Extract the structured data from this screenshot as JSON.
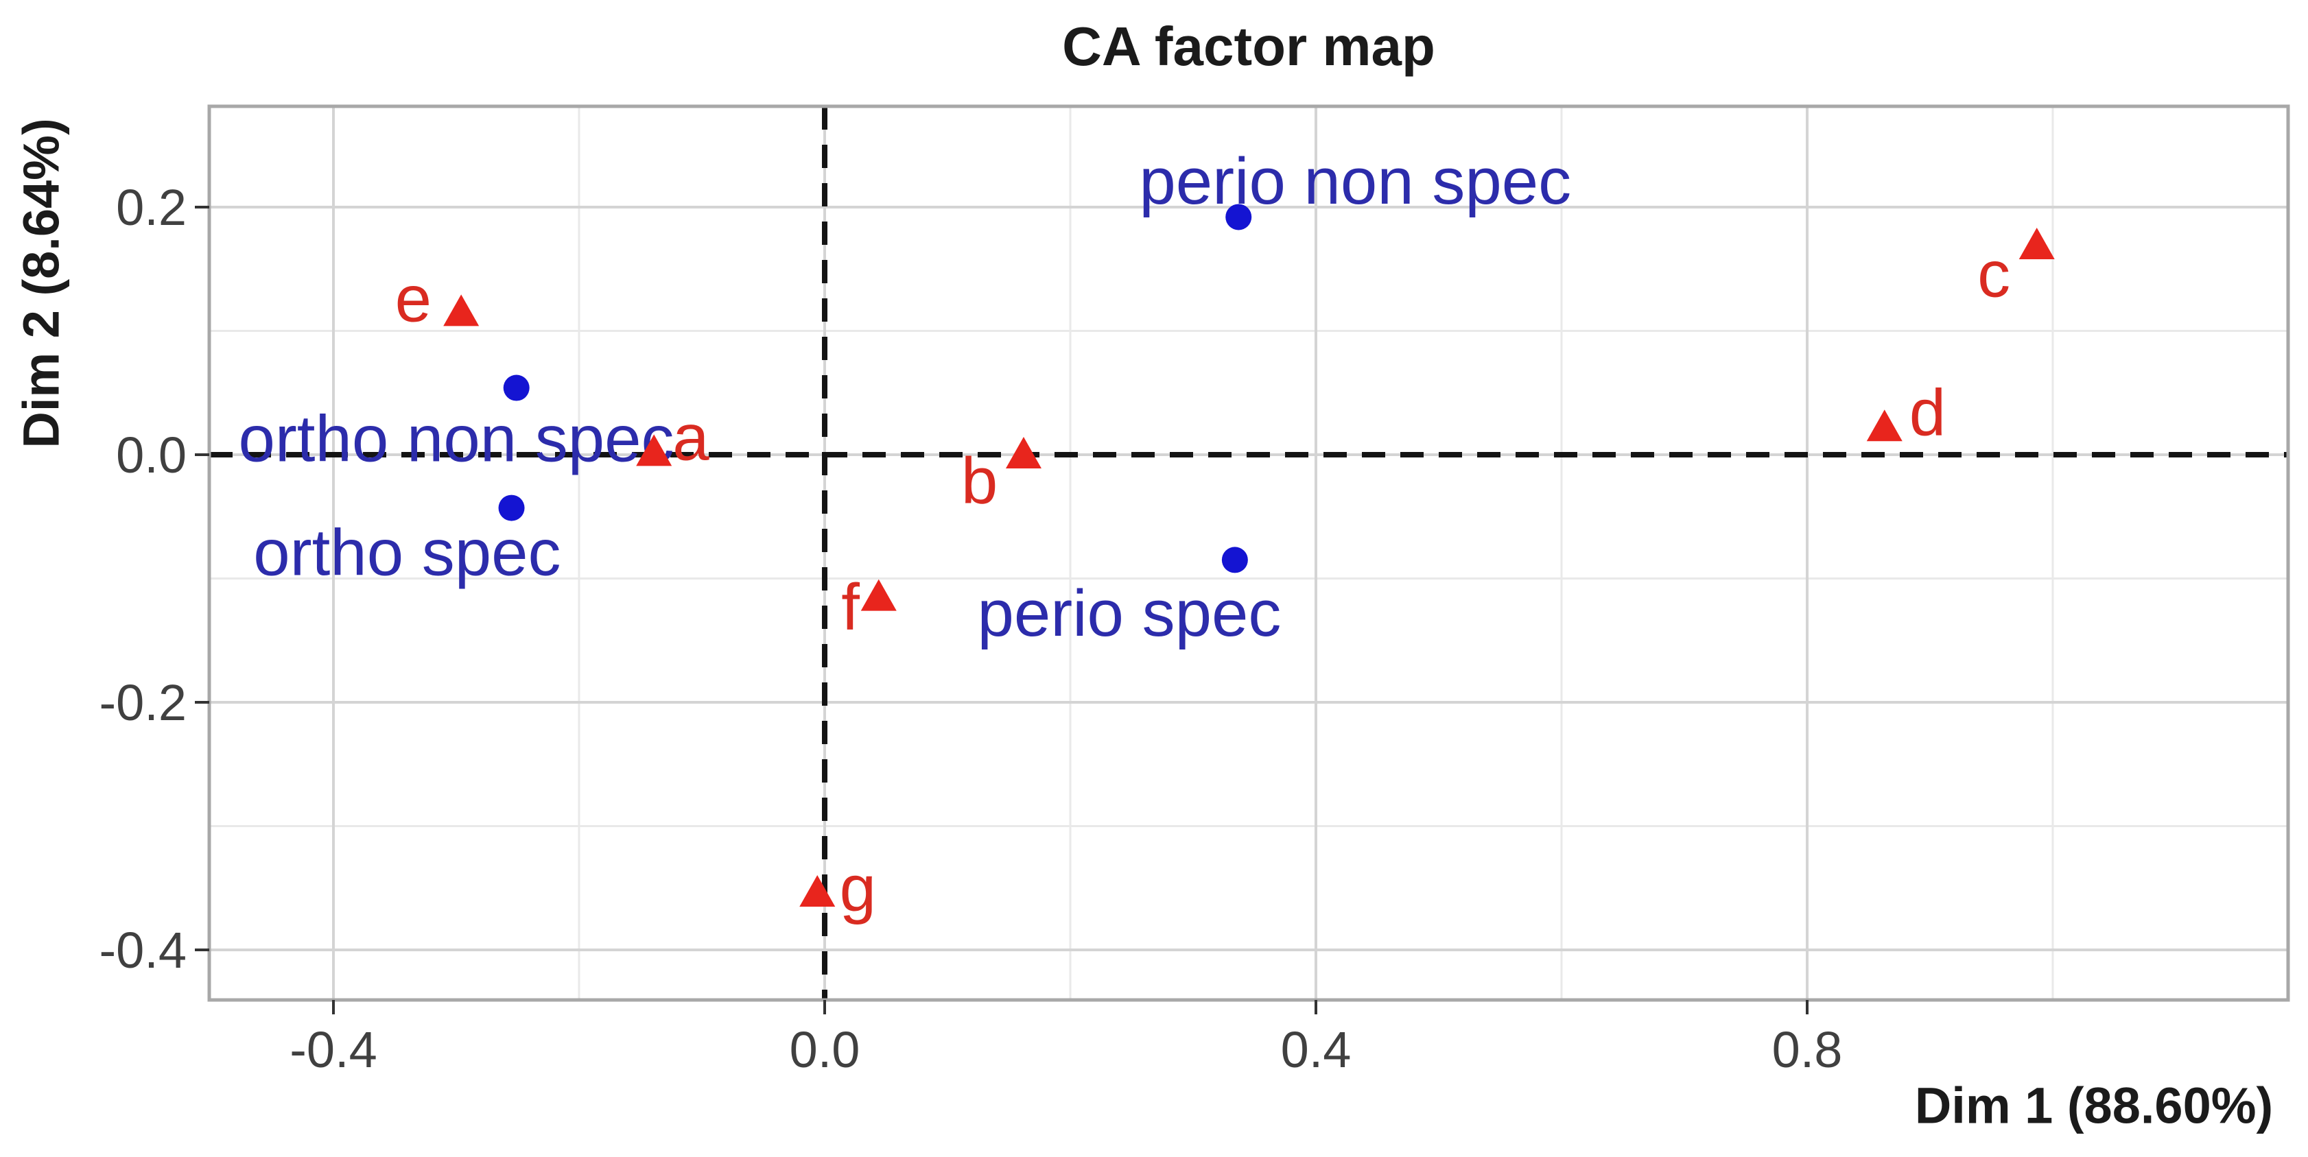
{
  "title": "CA factor map",
  "axes": {
    "x": {
      "label": "Dim 1 (88.60%)",
      "ticks": [
        -0.4,
        0.0,
        0.4,
        0.8
      ],
      "tick_labels": [
        "-0.4",
        "0.0",
        "0.4",
        "0.8"
      ],
      "minor_ticks": [
        -0.2,
        0.2,
        0.6,
        1.0
      ],
      "range": [
        -0.501,
        1.192
      ]
    },
    "y": {
      "label": "Dim 2 (8.64%)",
      "ticks": [
        0.2,
        0.0,
        -0.2,
        -0.4
      ],
      "tick_labels": [
        "0.2",
        "0.0",
        "-0.2",
        "-0.4"
      ],
      "minor_ticks": [
        0.1,
        -0.1,
        -0.3
      ],
      "range": [
        -0.44,
        0.281
      ]
    }
  },
  "colors": {
    "row_marker_blue": "#1414d2",
    "row_label_blue": "#2c2cab",
    "col_marker_red": "#e8251d",
    "col_label_red": "#d92b21",
    "grid_major": "#d4d4d4",
    "grid_minor": "#e9e9e9",
    "panel_border": "#a8a8a8",
    "tick_text": "#404040",
    "dashed_line": "#141414"
  },
  "chart_data": {
    "type": "scatter",
    "title": "CA factor map",
    "xlabel": "Dim 1 (88.60%)",
    "ylabel": "Dim 2 (8.64%)",
    "xlim": [
      -0.501,
      1.192
    ],
    "ylim": [
      -0.44,
      0.281
    ],
    "grid": true,
    "legend": "none",
    "reference_lines": {
      "x": 0.0,
      "y": 0.0,
      "style": "dashed"
    },
    "series": [
      {
        "name": "row-points",
        "marker": "circle",
        "color": "#1414d2",
        "label_color": "#2c2cab",
        "points": [
          {
            "label": "ortho non spec",
            "x": -0.251,
            "y": 0.054,
            "label_x": -0.3,
            "label_y": 0.013
          },
          {
            "label": "ortho spec",
            "x": -0.255,
            "y": -0.043,
            "label_x": -0.34,
            "label_y": -0.079
          },
          {
            "label": "perio spec",
            "x": 0.334,
            "y": -0.085,
            "label_x": 0.248,
            "label_y": -0.128
          },
          {
            "label": "perio non spec",
            "x": 0.337,
            "y": 0.192,
            "label_x": 0.432,
            "label_y": 0.221
          }
        ]
      },
      {
        "name": "column-points",
        "marker": "triangle",
        "color": "#e8251d",
        "label_color": "#d92b21",
        "points": [
          {
            "label": "a",
            "x": -0.139,
            "y": 0.002,
            "label_x": -0.109,
            "label_y": 0.014
          },
          {
            "label": "b",
            "x": 0.162,
            "y": 0.0,
            "label_x": 0.126,
            "label_y": -0.021
          },
          {
            "label": "c",
            "x": 0.987,
            "y": 0.169,
            "label_x": 0.952,
            "label_y": 0.146
          },
          {
            "label": "d",
            "x": 0.863,
            "y": 0.022,
            "label_x": 0.898,
            "label_y": 0.034
          },
          {
            "label": "e",
            "x": -0.296,
            "y": 0.115,
            "label_x": -0.335,
            "label_y": 0.126
          },
          {
            "label": "f",
            "x": 0.044,
            "y": -0.115,
            "label_x": 0.021,
            "label_y": -0.123
          },
          {
            "label": "g",
            "x": -0.006,
            "y": -0.354,
            "label_x": 0.027,
            "label_y": -0.35
          }
        ]
      }
    ]
  }
}
